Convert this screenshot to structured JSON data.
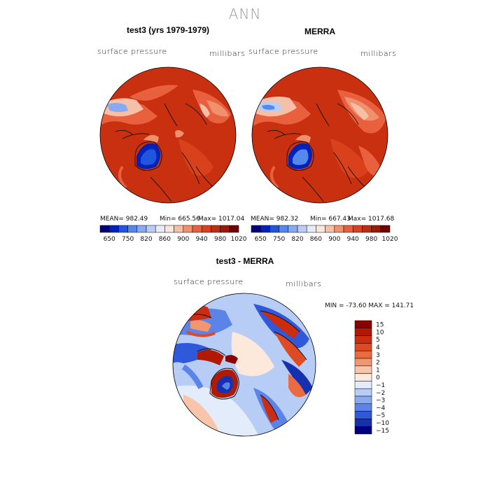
{
  "title": "ANN",
  "panels": [
    {
      "title": "test3 (yrs 1979-1979)",
      "variable": "surface pressure",
      "units": "millibars",
      "mean": "MEAN= 982.49",
      "min": "Min= 665.56",
      "max": "Max= 1017.04"
    },
    {
      "title": "MERRA",
      "variable": "surface pressure",
      "units": "millibars",
      "mean": "MEAN= 982.32",
      "min": "Min= 667.43",
      "max": "Max= 1017.68"
    }
  ],
  "colorbar": {
    "labels": [
      "650",
      "750",
      "820",
      "860",
      "900",
      "940",
      "980",
      "1020"
    ],
    "colors": [
      "#00007f",
      "#0022bb",
      "#2255dd",
      "#5588ee",
      "#88aaf2",
      "#b8ccf6",
      "#e6ecfb",
      "#fbe6dc",
      "#f6c0a8",
      "#f0906c",
      "#e8603e",
      "#d9401c",
      "#c02e10",
      "#9a1a08",
      "#6f0000"
    ]
  },
  "diff": {
    "title": "test3 - MERRA",
    "variable": "surface pressure",
    "units": "millibars",
    "minmax": "MIN = -73.60 MAX = 141.71",
    "colorbar": {
      "labels": [
        "15",
        "10",
        "5",
        "4",
        "3",
        "2",
        "1",
        "0",
        "−1",
        "−2",
        "−3",
        "−4",
        "−5",
        "−10",
        "−15"
      ],
      "colors": [
        "#8b0000",
        "#b01a05",
        "#cc2d10",
        "#de4a22",
        "#ea6a42",
        "#f29670",
        "#f8c4aa",
        "#fde9dc",
        "#e2ecfb",
        "#b8cdf6",
        "#8aaaf0",
        "#5c84e8",
        "#3058da",
        "#1530b0",
        "#00007f"
      ]
    }
  }
}
